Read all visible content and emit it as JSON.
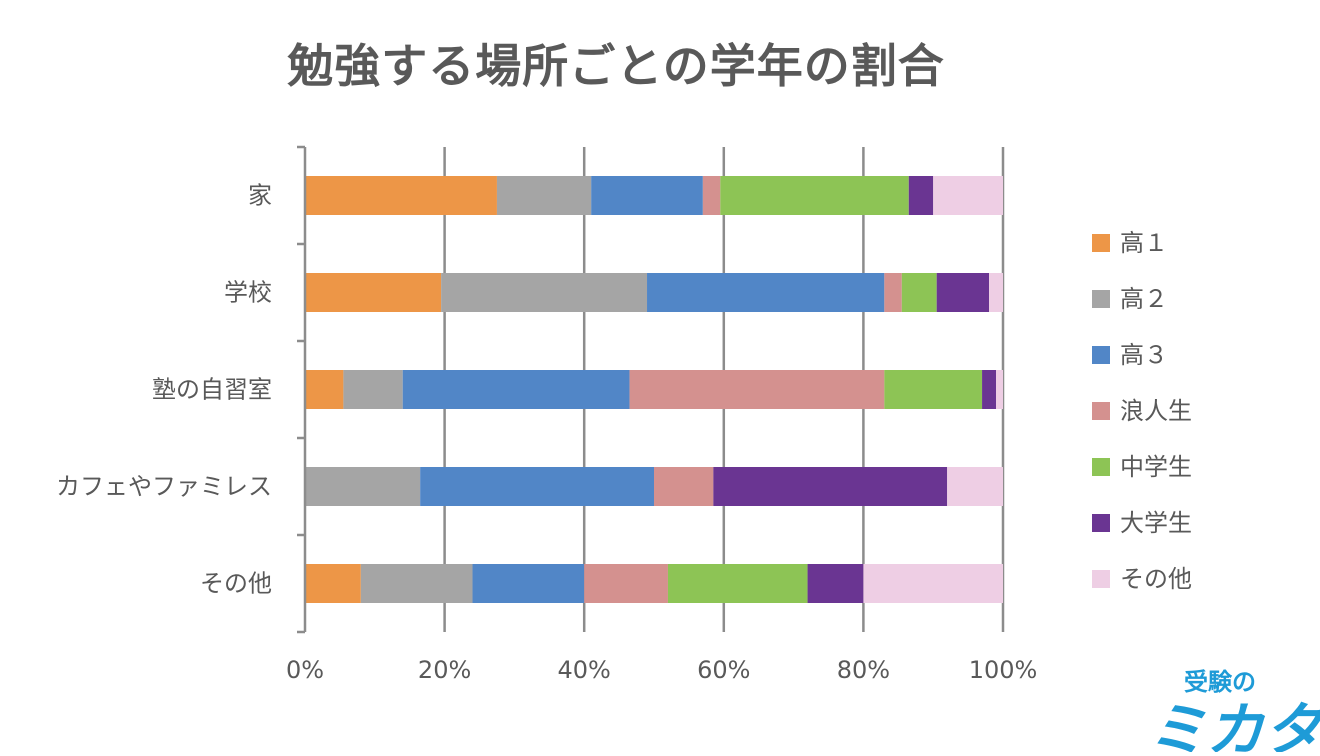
{
  "chart_data": {
    "type": "bar",
    "orientation": "horizontal",
    "stacked": "percent",
    "title": "勉強する場所ごとの学年の割合",
    "categories": [
      "家",
      "学校",
      "塾の自習室",
      "カフェやファミレス",
      "その他"
    ],
    "xlim": [
      0,
      100
    ],
    "x_ticks": [
      "0%",
      "20%",
      "40%",
      "60%",
      "80%",
      "100%"
    ],
    "grid": true,
    "legend_position": "right",
    "series": [
      {
        "name": "高１",
        "color": "#ED9647",
        "values": [
          27.5,
          19.5,
          5.5,
          0,
          8
        ]
      },
      {
        "name": "高２",
        "color": "#A5A5A5",
        "values": [
          13.5,
          29.5,
          8.5,
          16.5,
          16
        ]
      },
      {
        "name": "高３",
        "color": "#5186C7",
        "values": [
          16,
          34,
          32.5,
          33.5,
          16
        ]
      },
      {
        "name": "浪人生",
        "color": "#D4918F",
        "values": [
          2.5,
          2.5,
          36.5,
          8.5,
          12
        ]
      },
      {
        "name": "中学生",
        "color": "#8DC455",
        "values": [
          27,
          5,
          14,
          0,
          20
        ]
      },
      {
        "name": "大学生",
        "color": "#6A3592",
        "values": [
          3.5,
          7.5,
          2,
          33.5,
          8
        ]
      },
      {
        "name": "その他",
        "color": "#EECEE4",
        "values": [
          10,
          2,
          1,
          8,
          20
        ]
      }
    ]
  },
  "logo": {
    "text_top": "受験の",
    "text_main": "ミカタ",
    "color": "#1E9BD7"
  }
}
